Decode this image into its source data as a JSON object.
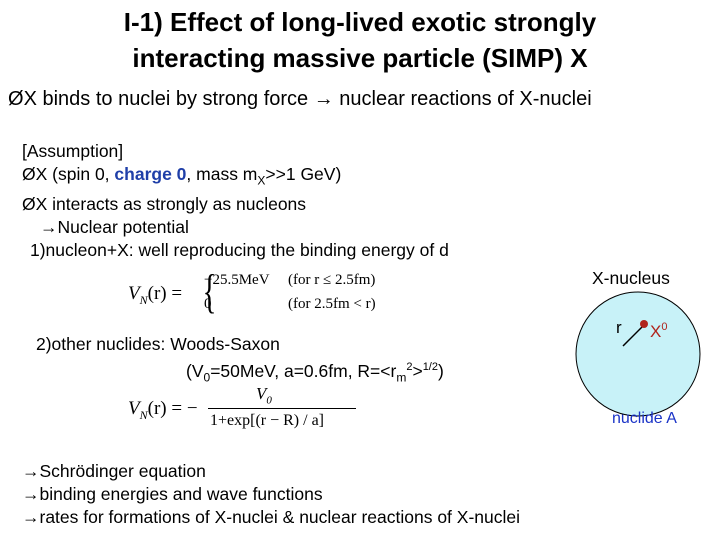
{
  "title": {
    "line1": "I-1) Effect of long-lived exotic strongly",
    "line2": "interacting massive particle (SIMP) X"
  },
  "main_bullet": {
    "marker": "Ø",
    "text_a": "X binds to nuclei by strong force",
    "arrow": "→",
    "text_b": "nuclear reactions of X-nuclei"
  },
  "assumption": {
    "header": "[Assumption]",
    "item1_marker": "Ø",
    "item1_a": "X (spin 0, ",
    "item1_charge": "charge 0",
    "item1_b": ", mass m",
    "item1_sub": "X",
    "item1_c": ">>1 GeV)",
    "item2_marker": "Ø",
    "item2": "X interacts as strongly as nucleons",
    "item3_arrow": "→",
    "item3": "Nuclear potential",
    "item4": "1)nucleon+X: well reproducing the binding energy of d"
  },
  "equation1": {
    "lhs": "V",
    "lhs_sub": "N",
    "lhs_arg": "(r) =",
    "case1_value": "−25.5MeV",
    "case1_cond": "(for r ≤ 2.5fm)",
    "case2_value": "0",
    "case2_cond": "(for 2.5fm < r)"
  },
  "woods_saxon": {
    "line1": "2)other nuclides: Woods-Saxon",
    "line2_a": "(V",
    "line2_sub0": "0",
    "line2_b": "=50MeV, a=0.6fm, R=<r",
    "line2_subm": "m",
    "line2_sup2": "2",
    "line2_c": ">",
    "line2_sup_half": "1/2",
    "line2_d": ")"
  },
  "equation2": {
    "lhs": "V",
    "lhs_sub": "N",
    "lhs_arg": "(r) = −",
    "numerator": "V",
    "numerator_sub": "0",
    "denominator": "1+exp[(r − R) / a]"
  },
  "diagram": {
    "label": "X-nucleus",
    "r_label": "r",
    "x_label": "X",
    "x_sup": "0",
    "nuclide_label": "nuclide A",
    "circle_color": "#c8f2f8",
    "nuclide_color": "#1a33c7",
    "x_color": "#b0241c"
  },
  "bottom": {
    "arrow": "→",
    "line1": "Schrödinger equation",
    "line2": "binding energies and wave functions",
    "line3": "rates for formations of X-nuclei & nuclear reactions of X-nuclei"
  }
}
